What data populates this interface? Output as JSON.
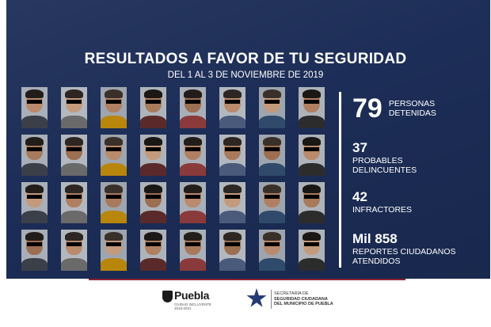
{
  "header": {
    "title": "RESULTADOS A FAVOR DE TU SEGURIDAD",
    "subtitle": "DEL 1 AL 3 DE NOVIEMBRE DE 2019"
  },
  "photos": {
    "rows": 4,
    "columns": 8
  },
  "stats": [
    {
      "number": "79",
      "label_line1": "PERSONAS",
      "label_line2": "DETENIDAS"
    },
    {
      "number": "37",
      "label_line1": "PROBABLES",
      "label_line2": "DELINCUENTES"
    },
    {
      "number": "42",
      "label_line1": "INFRACTORES",
      "label_line2": ""
    },
    {
      "number": "Mil 858",
      "label_line1": "REPORTES CIUDADANOS",
      "label_line2": "ATENDIDOS"
    }
  ],
  "footer": {
    "puebla_logo": {
      "word": "Puebla",
      "tagline_1": "CIUDAD INCLUYENTE",
      "tagline_2": "2018-2021"
    },
    "ssc_logo": {
      "line1": "SECRETARÍA DE",
      "line2": "SEGURIDAD CIUDADANA",
      "line3": "DEL MUNICIPIO DE PUEBLA"
    }
  },
  "colors": {
    "background": "#1c2d57",
    "text": "#ffffff",
    "accent_line": "#8b2535",
    "logo_star": "#243a75"
  }
}
